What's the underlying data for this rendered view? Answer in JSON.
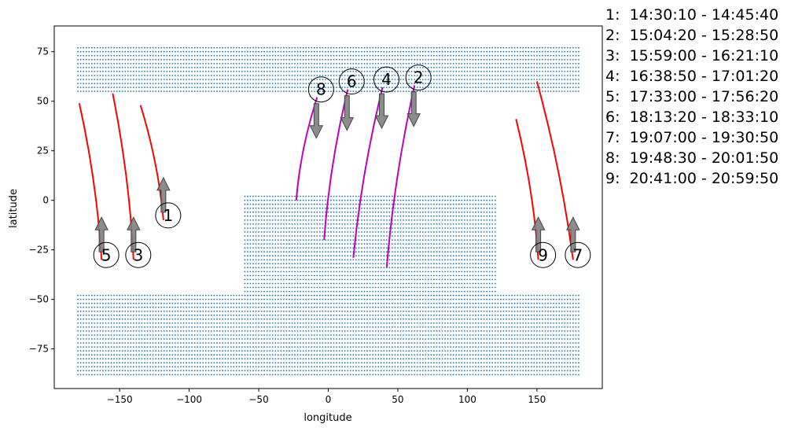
{
  "chart_data": {
    "type": "scatter",
    "title": "",
    "xlabel": "longitude",
    "ylabel": "latitude",
    "xlim": [
      -197,
      197
    ],
    "ylim": [
      -95,
      88
    ],
    "xticks": [
      -150,
      -100,
      -50,
      0,
      50,
      100,
      150
    ],
    "yticks": [
      -75,
      -50,
      -25,
      0,
      25,
      50,
      75
    ],
    "grid": false,
    "colors": {
      "land": "#1f77b4",
      "ascending_track": "#ff0000",
      "descending_track": "#bf00bf",
      "arrow": "#808080",
      "axis": "#000000"
    },
    "land_grid_step_deg": 2,
    "land_regions": [
      {
        "lon_range": [
          -180,
          180
        ],
        "lat_range": [
          55,
          78
        ],
        "description": "northern land mass"
      },
      {
        "lon_range": [
          -180,
          180
        ],
        "lat_range": [
          -88,
          -48
        ],
        "description": "southern land mass"
      },
      {
        "lon_range": [
          -60,
          120
        ],
        "lat_range": [
          -48,
          3
        ],
        "description": "central land mass"
      }
    ],
    "tracks": [
      {
        "label": "1",
        "time_range": "14:30:10 - 14:45:40",
        "direction": "up",
        "lon": [
          -118.5,
          -135
        ],
        "lat": [
          -10,
          48
        ]
      },
      {
        "label": "2",
        "time_range": "15:04:20 - 15:28:50",
        "direction": "down",
        "lon": [
          62,
          42
        ],
        "lat": [
          58,
          -34
        ]
      },
      {
        "label": "3",
        "time_range": "15:59:00 - 16:21:10",
        "direction": "up",
        "lon": [
          -140,
          -155
        ],
        "lat": [
          -30,
          54
        ]
      },
      {
        "label": "4",
        "time_range": "16:38:50 - 17:01:20",
        "direction": "down",
        "lon": [
          39,
          18
        ],
        "lat": [
          57,
          -29
        ]
      },
      {
        "label": "5",
        "time_range": "17:33:00 - 17:56:20",
        "direction": "up",
        "lon": [
          -163,
          -179
        ],
        "lat": [
          -30,
          49
        ]
      },
      {
        "label": "6",
        "time_range": "18:13:20 - 18:33:10",
        "direction": "down",
        "lon": [
          14,
          -3
        ],
        "lat": [
          56,
          -20
        ]
      },
      {
        "label": "7",
        "time_range": "19:07:00 - 19:30:50",
        "direction": "up",
        "lon": [
          176,
          150
        ],
        "lat": [
          -30,
          60
        ]
      },
      {
        "label": "8",
        "time_range": "19:48:30 - 20:01:50",
        "direction": "down",
        "lon": [
          -8,
          -23
        ],
        "lat": [
          52,
          0
        ]
      },
      {
        "label": "9",
        "time_range": "20:41:00 - 20:59:50",
        "direction": "up",
        "lon": [
          151,
          135
        ],
        "lat": [
          -30,
          41
        ]
      }
    ],
    "legend": [
      "1:  14:30:10 - 14:45:40",
      "2:  15:04:20 - 15:28:50",
      "3:  15:59:00 - 16:21:10",
      "4:  16:38:50 - 17:01:20",
      "5:  17:33:00 - 17:56:20",
      "6:  18:13:20 - 18:33:10",
      "7:  19:07:00 - 19:30:50",
      "8:  19:48:30 - 20:01:50",
      "9:  20:41:00 - 20:59:50"
    ],
    "legend_position": "right, outside plot"
  }
}
